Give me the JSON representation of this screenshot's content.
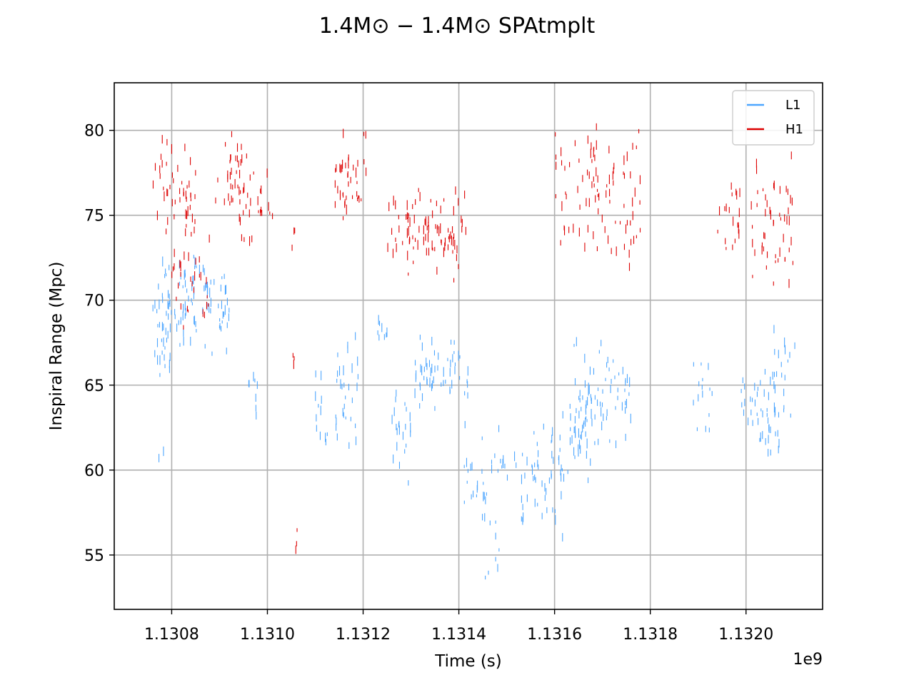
{
  "chart_data": {
    "type": "scatter",
    "title": "1.4M⊙ − 1.4M⊙ SPAtmplt",
    "xlabel": "Time (s)",
    "ylabel": "Inspiral Range (Mpc)",
    "x_offset_label": "1e9",
    "xlim": [
      1130680000,
      1132160000
    ],
    "ylim": [
      51.8,
      82.8
    ],
    "x_ticks": [
      1130800000,
      1131000000,
      1131200000,
      1131400000,
      1131600000,
      1131800000,
      1132000000
    ],
    "x_tick_labels": [
      "1.1308",
      "1.1310",
      "1.1312",
      "1.1314",
      "1.1316",
      "1.1318",
      "1.1320"
    ],
    "y_ticks": [
      55,
      60,
      65,
      70,
      75,
      80
    ],
    "y_tick_labels": [
      "55",
      "60",
      "65",
      "70",
      "75",
      "80"
    ],
    "grid": true,
    "legend_position": "top-right",
    "marker": "vertical-dash",
    "series": [
      {
        "name": "L1",
        "color": "#4da6ff",
        "clusters": [
          {
            "x": [
              1130760000,
              1130800000
            ],
            "y": [
              64.5,
              71.5
            ],
            "n": 30,
            "seed": 11
          },
          {
            "x": [
              1130780000,
              1130880000
            ],
            "y": [
              66.0,
              73.5
            ],
            "n": 70,
            "seed": 12
          },
          {
            "x": [
              1130880000,
              1130920000
            ],
            "y": [
              66.5,
              72.5
            ],
            "n": 25,
            "seed": 13
          },
          {
            "x": [
              1130760000,
              1130790000
            ],
            "y": [
              60.0,
              62.0
            ],
            "n": 2,
            "seed": 14
          },
          {
            "x": [
              1130960000,
              1130980000
            ],
            "y": [
              63.0,
              67.0
            ],
            "n": 8,
            "seed": 15
          },
          {
            "x": [
              1131100000,
              1131130000
            ],
            "y": [
              60.5,
              66.5
            ],
            "n": 12,
            "seed": 16
          },
          {
            "x": [
              1131140000,
              1131190000
            ],
            "y": [
              60.0,
              69.0
            ],
            "n": 30,
            "seed": 17
          },
          {
            "x": [
              1131230000,
              1131250000
            ],
            "y": [
              66.5,
              69.5
            ],
            "n": 8,
            "seed": 18
          },
          {
            "x": [
              1131260000,
              1131300000
            ],
            "y": [
              59.0,
              66.0
            ],
            "n": 22,
            "seed": 19
          },
          {
            "x": [
              1131300000,
              1131420000
            ],
            "y": [
              63.5,
              68.0
            ],
            "n": 55,
            "seed": 20
          },
          {
            "x": [
              1131410000,
              1131470000
            ],
            "y": [
              55.5,
              64.0
            ],
            "n": 22,
            "seed": 21
          },
          {
            "x": [
              1131450000,
              1131500000
            ],
            "y": [
              53.0,
              59.0
            ],
            "n": 10,
            "seed": 22
          },
          {
            "x": [
              1131470000,
              1131520000
            ],
            "y": [
              58.5,
              63.0
            ],
            "n": 12,
            "seed": 23
          },
          {
            "x": [
              1131530000,
              1131620000
            ],
            "y": [
              55.5,
              63.5
            ],
            "n": 45,
            "seed": 24
          },
          {
            "x": [
              1131600000,
              1131680000
            ],
            "y": [
              58.5,
              65.5
            ],
            "n": 40,
            "seed": 25
          },
          {
            "x": [
              1131640000,
              1131760000
            ],
            "y": [
              60.5,
              68.0
            ],
            "n": 70,
            "seed": 26
          },
          {
            "x": [
              1131890000,
              1131930000
            ],
            "y": [
              62.0,
              67.0
            ],
            "n": 15,
            "seed": 27
          },
          {
            "x": [
              1131990000,
              1132070000
            ],
            "y": [
              60.5,
              67.0
            ],
            "n": 45,
            "seed": 28
          },
          {
            "x": [
              1132050000,
              1132105000
            ],
            "y": [
              62.5,
              69.0
            ],
            "n": 20,
            "seed": 29
          }
        ]
      },
      {
        "name": "H1",
        "color": "#dd0000",
        "clusters": [
          {
            "x": [
              1130760000,
              1130850000
            ],
            "y": [
              72.5,
              79.5
            ],
            "n": 50,
            "seed": 31
          },
          {
            "x": [
              1130800000,
              1130880000
            ],
            "y": [
              68.0,
              74.5
            ],
            "n": 30,
            "seed": 32
          },
          {
            "x": [
              1130890000,
              1130960000
            ],
            "y": [
              75.0,
              80.5
            ],
            "n": 30,
            "seed": 33
          },
          {
            "x": [
              1130940000,
              1131020000
            ],
            "y": [
              72.5,
              79.0
            ],
            "n": 30,
            "seed": 34
          },
          {
            "x": [
              1131050000,
              1131060000
            ],
            "y": [
              72.5,
              75.5
            ],
            "n": 3,
            "seed": 35
          },
          {
            "x": [
              1131050000,
              1131060000
            ],
            "y": [
              65.0,
              67.5
            ],
            "n": 3,
            "seed": 36
          },
          {
            "x": [
              1131055000,
              1131062000
            ],
            "y": [
              53.2,
              62.0
            ],
            "n": 3,
            "seed": 37
          },
          {
            "x": [
              1131140000,
              1131210000
            ],
            "y": [
              74.0,
              80.5
            ],
            "n": 40,
            "seed": 38
          },
          {
            "x": [
              1131250000,
              1131310000
            ],
            "y": [
              71.0,
              77.5
            ],
            "n": 20,
            "seed": 39
          },
          {
            "x": [
              1131290000,
              1131420000
            ],
            "y": [
              70.5,
              77.0
            ],
            "n": 70,
            "seed": 40
          },
          {
            "x": [
              1131600000,
              1131700000
            ],
            "y": [
              72.5,
              81.0
            ],
            "n": 50,
            "seed": 41
          },
          {
            "x": [
              1131700000,
              1131780000
            ],
            "y": [
              70.5,
              81.5
            ],
            "n": 40,
            "seed": 42
          },
          {
            "x": [
              1131940000,
              1131990000
            ],
            "y": [
              72.5,
              77.5
            ],
            "n": 20,
            "seed": 43
          },
          {
            "x": [
              1132010000,
              1132100000
            ],
            "y": [
              70.5,
              79.0
            ],
            "n": 50,
            "seed": 44
          }
        ]
      }
    ]
  }
}
